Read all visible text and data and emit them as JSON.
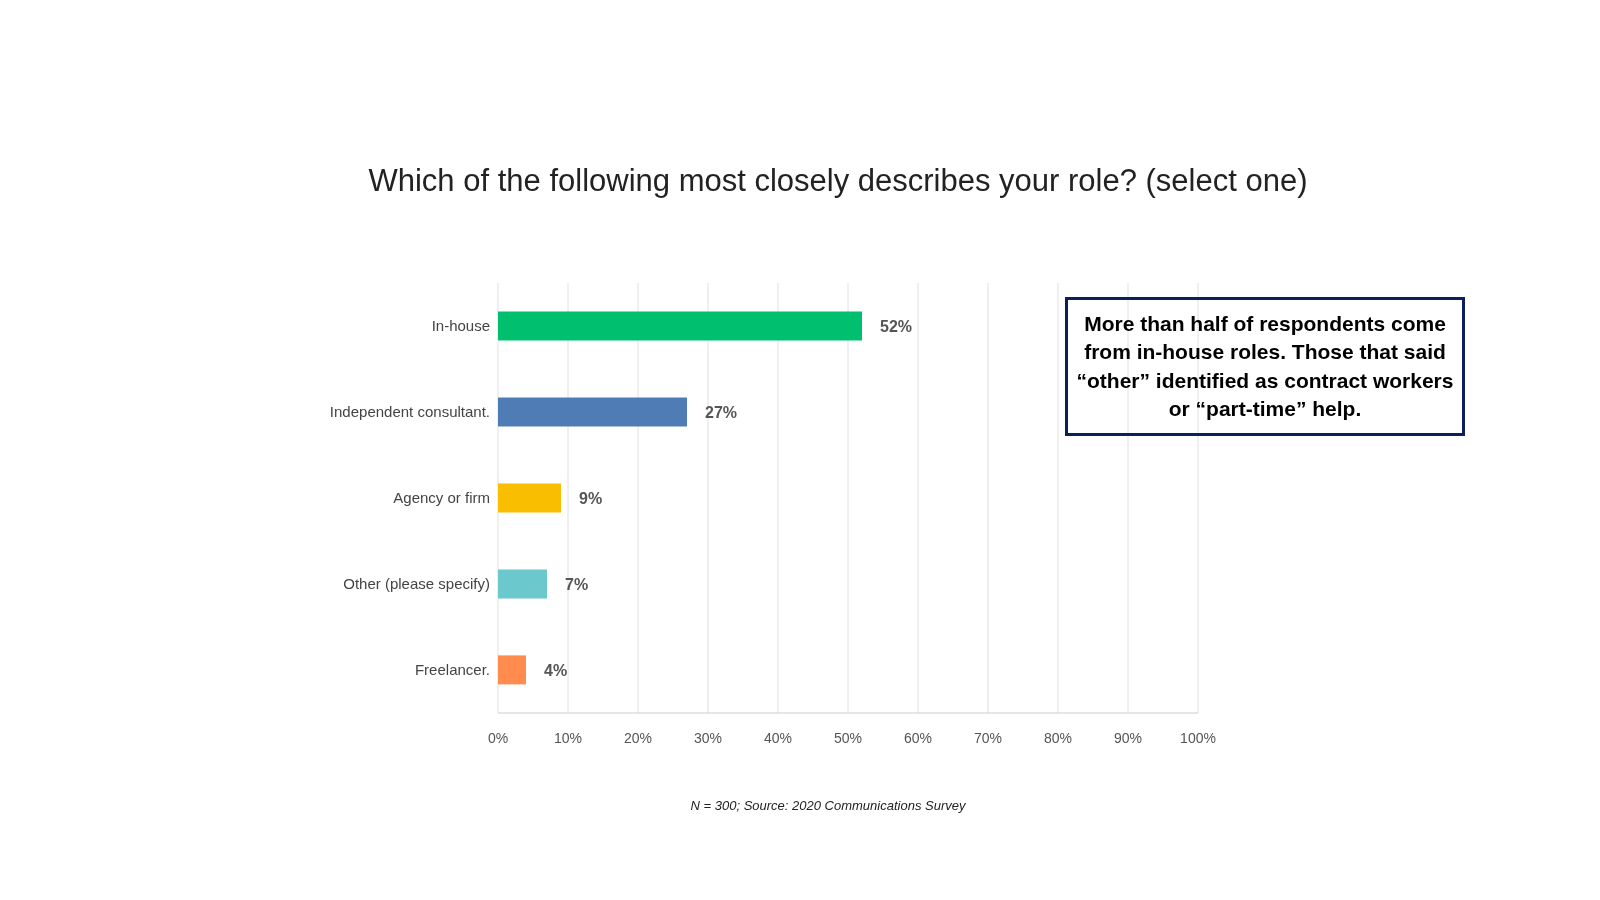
{
  "chart_data": {
    "type": "bar",
    "orientation": "horizontal",
    "title": "Which of the following most closely describes your role? (select one)",
    "categories": [
      "In-house",
      "Independent consultant.",
      "Agency or firm",
      "Other (please specify)",
      "Freelancer."
    ],
    "values": [
      52,
      27,
      9,
      7,
      4
    ],
    "colors": [
      "#00bf6f",
      "#507cb6",
      "#f9be00",
      "#6bc8cd",
      "#ff8b4f"
    ],
    "value_labels": [
      "52%",
      "27%",
      "9%",
      "7%",
      "4%"
    ],
    "xlim": [
      0,
      100
    ],
    "xticks": [
      {
        "value": 0,
        "label": "0%"
      },
      {
        "value": 10,
        "label": "10%"
      },
      {
        "value": 20,
        "label": "20%"
      },
      {
        "value": 30,
        "label": "30%"
      },
      {
        "value": 40,
        "label": "40%"
      },
      {
        "value": 50,
        "label": "50%"
      },
      {
        "value": 60,
        "label": "60%"
      },
      {
        "value": 70,
        "label": "70%"
      },
      {
        "value": 80,
        "label": "80%"
      },
      {
        "value": 90,
        "label": "90%"
      },
      {
        "value": 100,
        "label": "100%"
      }
    ],
    "grid": "x",
    "legend": false,
    "annotations": [
      "More than half of respondents come from in-house roles. Those that said “other” identified as contract workers or “part-time” help.",
      "N = 300; Source: 2020 Communications Survey"
    ]
  }
}
